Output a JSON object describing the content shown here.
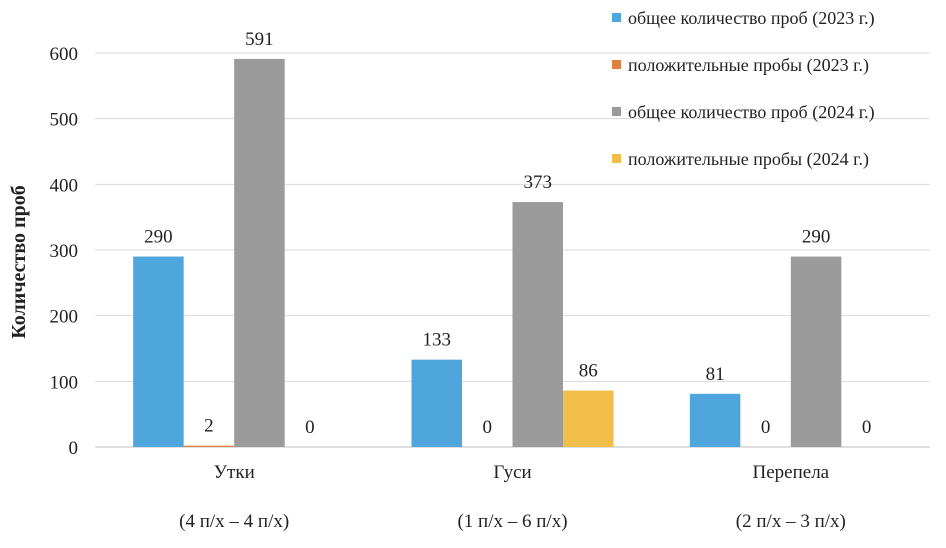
{
  "chart_data": {
    "type": "bar",
    "ylabel": "Количество  проб",
    "xlabel": "",
    "ylim": [
      0,
      600
    ],
    "yticks": [
      0,
      100,
      200,
      300,
      400,
      500,
      600
    ],
    "grid": true,
    "legend_position": "top-right",
    "categories": [
      "Утки",
      "Гуси",
      "Перепела"
    ],
    "subcategories": [
      "(4 п/х – 4 п/х)",
      "(1 п/х – 6 п/х)",
      "(2 п/х – 3 п/х)"
    ],
    "series": [
      {
        "name": "общее количество проб (2023 г.)",
        "values": [
          290,
          133,
          81
        ],
        "color": "#4EA6DC"
      },
      {
        "name": "положительные пробы (2023 г.)",
        "values": [
          2,
          0,
          0
        ],
        "color": "#E0813F"
      },
      {
        "name": "общее количество проб (2024 г.)",
        "values": [
          591,
          373,
          290
        ],
        "color": "#9B9B9B"
      },
      {
        "name": "положительные пробы (2024 г.)",
        "values": [
          0,
          86,
          0
        ],
        "color": "#F2BE4A"
      }
    ]
  }
}
